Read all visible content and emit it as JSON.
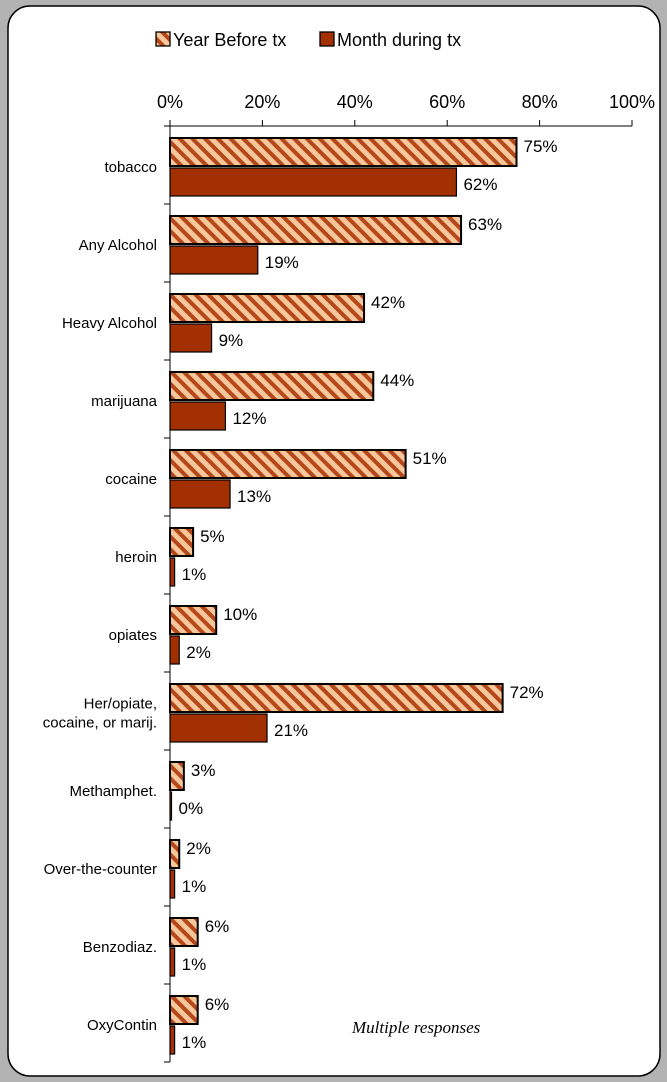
{
  "chart_data": {
    "type": "bar",
    "orientation": "horizontal",
    "categories": [
      [
        "tobacco"
      ],
      [
        "Any Alcohol"
      ],
      [
        "Heavy Alcohol"
      ],
      [
        "marijuana"
      ],
      [
        "cocaine"
      ],
      [
        "heroin"
      ],
      [
        "opiates"
      ],
      [
        "Her/opiate,",
        "cocaine, or marij."
      ],
      [
        "Methamphet."
      ],
      [
        "Over-the-counter"
      ],
      [
        "Benzodiaz."
      ],
      [
        "OxyContin"
      ]
    ],
    "series": [
      {
        "name": "Year Before tx",
        "pattern": "diagonal-hatch",
        "colors": {
          "fill": "#f5c79a",
          "hatch": "#b5471a",
          "stroke": "#000000"
        },
        "values": [
          75,
          63,
          42,
          44,
          51,
          5,
          10,
          72,
          3,
          2,
          6,
          6
        ],
        "labels": [
          "75%",
          "63%",
          "42%",
          "44%",
          "51%",
          "5%",
          "10%",
          "72%",
          "3%",
          "2%",
          "6%",
          "6%"
        ]
      },
      {
        "name": "Month during tx",
        "pattern": "solid",
        "colors": {
          "fill": "#a33000",
          "stroke": "#000000"
        },
        "values": [
          62,
          19,
          9,
          12,
          13,
          1,
          2,
          21,
          0,
          1,
          1,
          1
        ],
        "labels": [
          "62%",
          "19%",
          "9%",
          "12%",
          "13%",
          "1%",
          "2%",
          "21%",
          "0%",
          "1%",
          "1%",
          "1%"
        ]
      }
    ],
    "xlim": [
      0,
      100
    ],
    "xticks": [
      0,
      20,
      40,
      60,
      80,
      100
    ],
    "xtick_labels": [
      "0%",
      "20%",
      "40%",
      "60%",
      "80%",
      "100%"
    ],
    "axis_position": "top",
    "legend": "top",
    "grid": false,
    "annotation": "Multiple responses",
    "background": "#ffffff",
    "outer_background": "#b3b3b3"
  }
}
